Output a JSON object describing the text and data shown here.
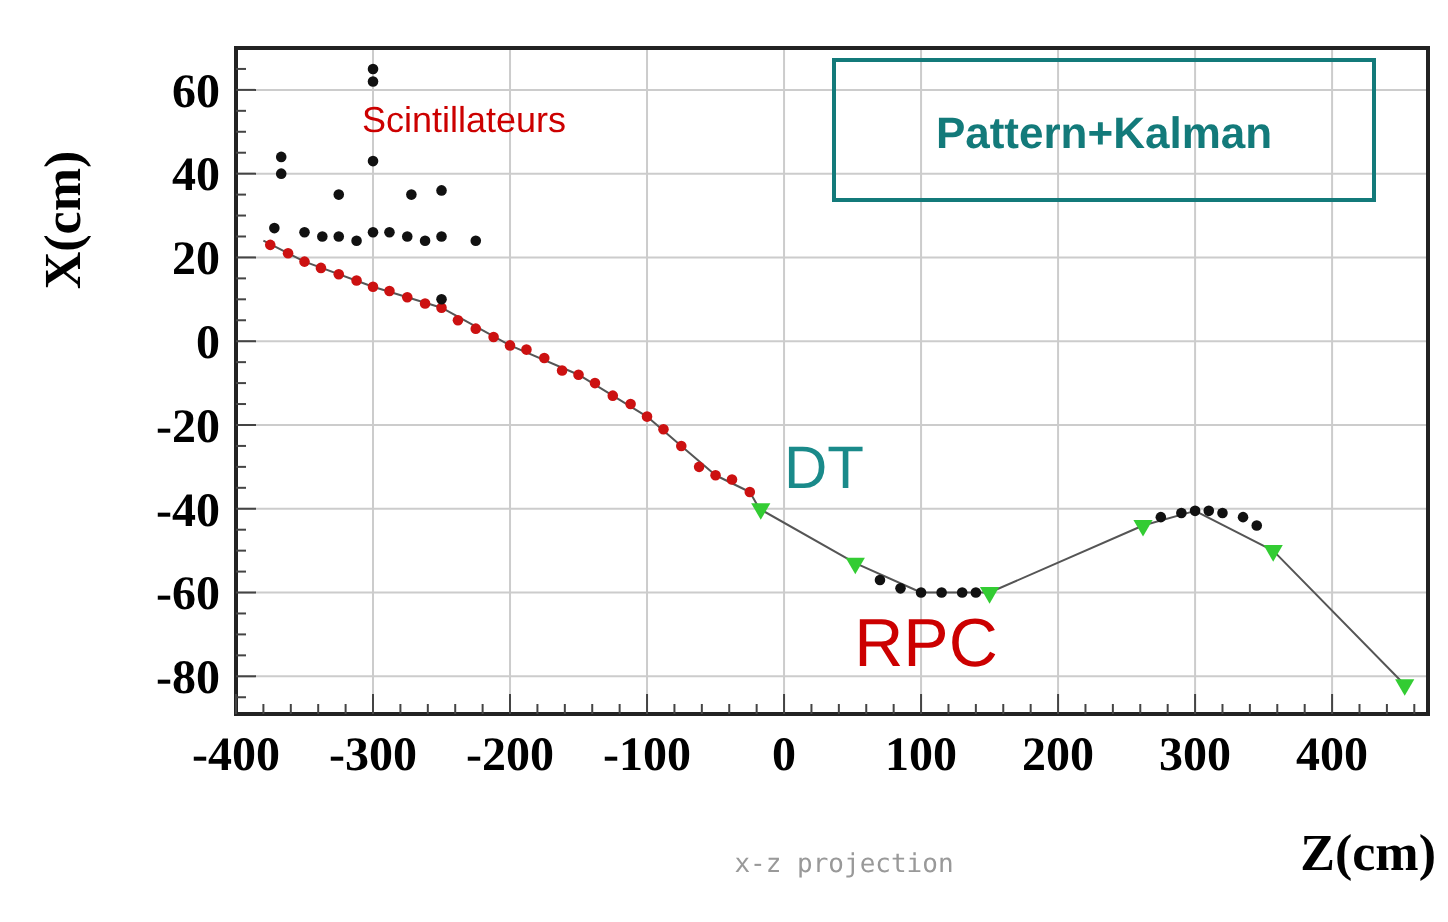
{
  "chart_data": {
    "type": "scatter",
    "xlabel": "Z(cm)",
    "ylabel": "X(cm)",
    "annotations": [
      "Scintillateurs",
      "DT",
      "RPC",
      "Pattern+Kalman",
      "x-z projection"
    ],
    "xlim": [
      -400,
      470
    ],
    "ylim": [
      -89,
      70
    ],
    "xticks": [
      -400,
      -300,
      -200,
      -100,
      0,
      100,
      200,
      300,
      400
    ],
    "yticks": [
      -80,
      -60,
      -40,
      -20,
      0,
      20,
      40,
      60
    ],
    "grid": true,
    "series": [
      {
        "type": "line",
        "color": "#555555",
        "x": [
          -380,
          -350,
          -300,
          -250,
          -200,
          -150,
          -100,
          -75,
          -50,
          -25,
          -18,
          52,
          100,
          150,
          262,
          300,
          357,
          453
        ],
        "values": [
          24,
          19,
          13,
          8,
          -1,
          -8,
          -18,
          -25,
          -32,
          -36,
          -40,
          -53,
          -60,
          -60,
          -44,
          -40.5,
          -50,
          -82
        ]
      },
      {
        "color": "#cc1111",
        "marker": "circle",
        "x": [
          -375,
          -362,
          -350,
          -338,
          -325,
          -312,
          -300,
          -288,
          -275,
          -262,
          -250,
          -238,
          -225,
          -212,
          -200,
          -188,
          -175,
          -162,
          -150,
          -138,
          -125,
          -112,
          -100,
          -88,
          -75,
          -62,
          -50,
          -38,
          -25
        ],
        "values": [
          23,
          21,
          19,
          17.5,
          16,
          14.5,
          13,
          12,
          10.5,
          9,
          8,
          5,
          3,
          1,
          -1,
          -2,
          -4,
          -7,
          -8,
          -10,
          -13,
          -15,
          -18,
          -21,
          -25,
          -30,
          -32,
          -33,
          -36
        ]
      },
      {
        "color": "#111111",
        "marker": "circle",
        "x": [
          -367,
          -367,
          -300,
          -300,
          -300,
          -325,
          -272,
          -250,
          -225,
          -372,
          -350,
          -337,
          -325,
          -312,
          -300,
          -288,
          -275,
          -262,
          -250,
          -250,
          70,
          85,
          100,
          115,
          130,
          140,
          275,
          290,
          300,
          310,
          320,
          335,
          345
        ],
        "values": [
          44,
          40,
          62,
          65,
          43,
          35,
          35,
          36,
          24,
          27,
          26,
          25,
          25,
          24,
          26,
          26,
          25,
          24,
          25,
          10,
          -57,
          -59,
          -60,
          -60,
          -60,
          -60,
          -42,
          -41,
          -40.5,
          -40.5,
          -41,
          -42,
          -44
        ]
      },
      {
        "color": "#33cc33",
        "marker": "triangle",
        "x": [
          -17,
          52,
          150,
          262,
          357,
          453
        ],
        "values": [
          -40,
          -53,
          -60,
          -44,
          -50,
          -82
        ]
      }
    ]
  }
}
